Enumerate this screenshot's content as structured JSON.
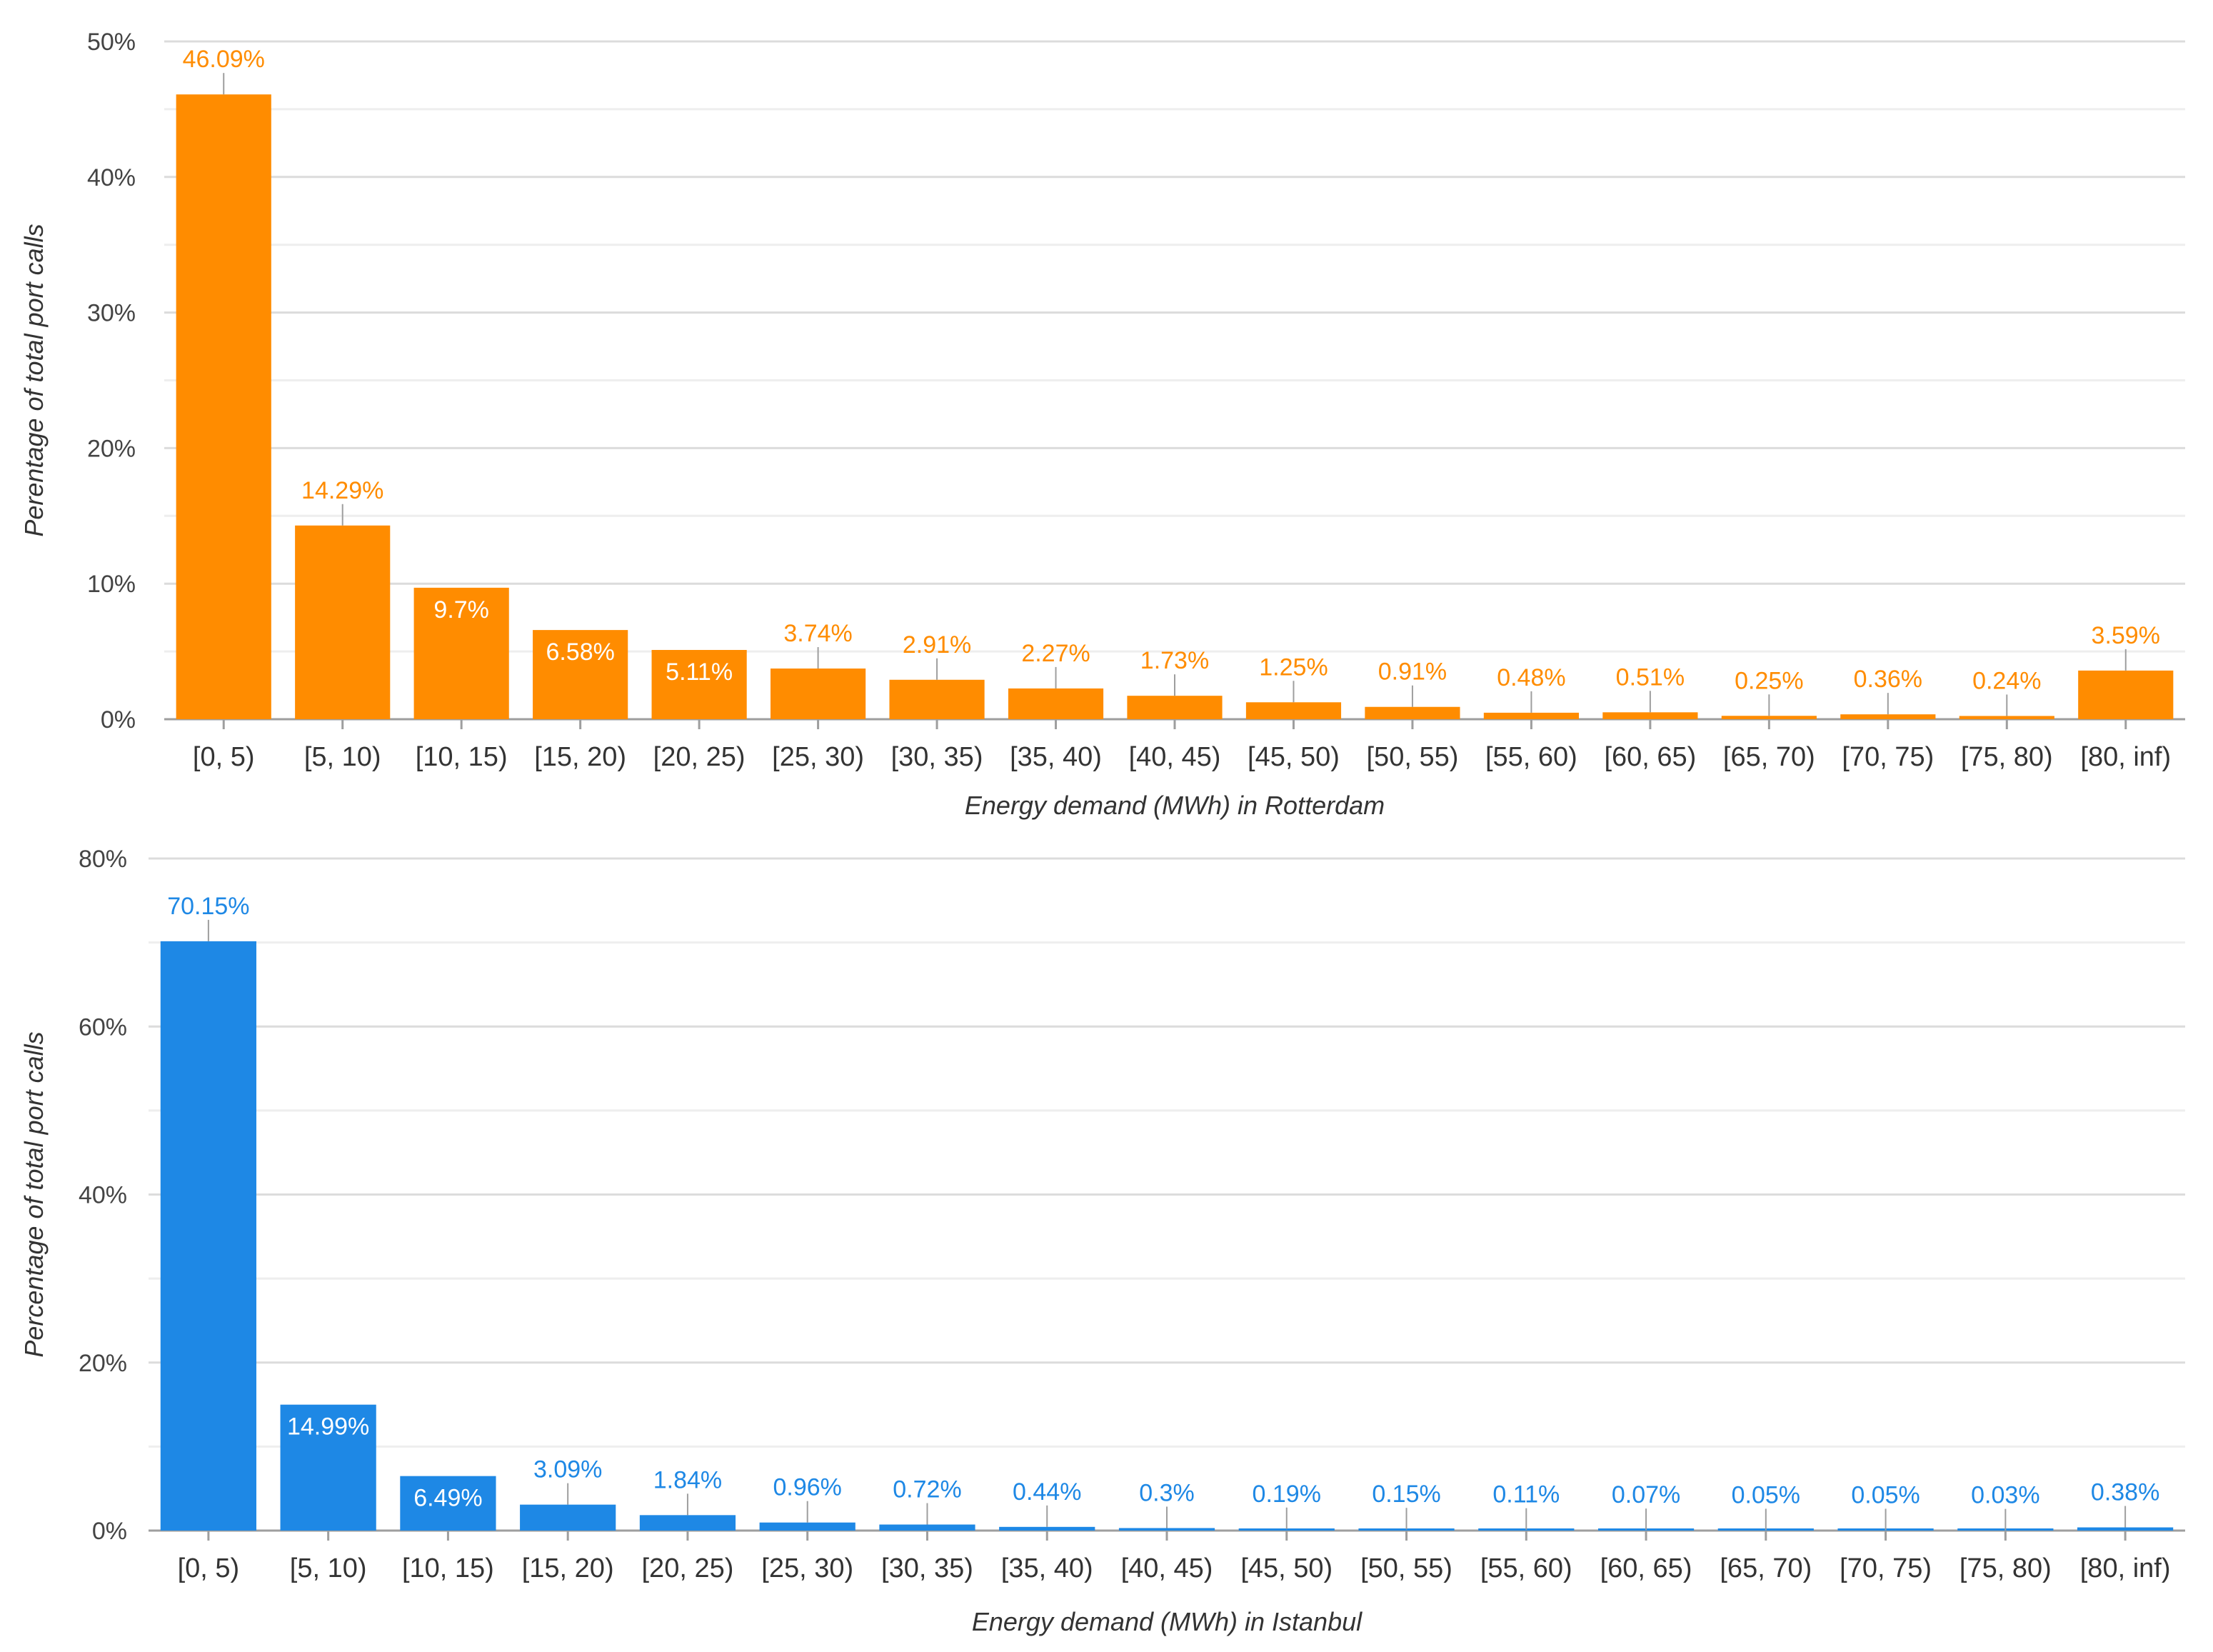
{
  "chart_data": [
    {
      "type": "bar",
      "categories": [
        "[0, 5)",
        "[5, 10)",
        "[10, 15)",
        "[15, 20)",
        "[20, 25)",
        "[25, 30)",
        "[30, 35)",
        "[35, 40)",
        "[40, 45)",
        "[45, 50)",
        "[50, 55)",
        "[55, 60)",
        "[60, 65)",
        "[65, 70)",
        "[70, 75)",
        "[75, 80)",
        "[80, inf)"
      ],
      "values": [
        46.09,
        14.29,
        9.7,
        6.58,
        5.11,
        3.74,
        2.91,
        2.27,
        1.73,
        1.25,
        0.91,
        0.48,
        0.51,
        0.25,
        0.36,
        0.24,
        3.59
      ],
      "value_labels": [
        "46.09%",
        "14.29%",
        "9.7%",
        "6.58%",
        "5.11%",
        "3.74%",
        "2.91%",
        "2.27%",
        "1.73%",
        "1.25%",
        "0.91%",
        "0.48%",
        "0.51%",
        "0.25%",
        "0.36%",
        "0.24%",
        "3.59%"
      ],
      "xlabel": "Energy demand (MWh) in Rotterdam",
      "ylabel": "Perentage of total port calls",
      "ylim": [
        0,
        50
      ],
      "yticks": [
        0,
        10,
        20,
        30,
        40,
        50
      ],
      "ytick_labels": [
        "0%",
        "10%",
        "20%",
        "30%",
        "40%",
        "50%"
      ],
      "color": "#FF8C00",
      "grid": true
    },
    {
      "type": "bar",
      "categories": [
        "[0, 5)",
        "[5, 10)",
        "[10, 15)",
        "[15, 20)",
        "[20, 25)",
        "[25, 30)",
        "[30, 35)",
        "[35, 40)",
        "[40, 45)",
        "[45, 50)",
        "[50, 55)",
        "[55, 60)",
        "[60, 65)",
        "[65, 70)",
        "[70, 75)",
        "[75, 80)",
        "[80, inf)"
      ],
      "values": [
        70.15,
        14.99,
        6.49,
        3.09,
        1.84,
        0.96,
        0.72,
        0.44,
        0.3,
        0.19,
        0.15,
        0.11,
        0.07,
        0.05,
        0.05,
        0.03,
        0.38
      ],
      "value_labels": [
        "70.15%",
        "14.99%",
        "6.49%",
        "3.09%",
        "1.84%",
        "0.96%",
        "0.72%",
        "0.44%",
        "0.3%",
        "0.19%",
        "0.15%",
        "0.11%",
        "0.07%",
        "0.05%",
        "0.05%",
        "0.03%",
        "0.38%"
      ],
      "xlabel": "Energy demand (MWh) in Istanbul",
      "ylabel": "Percentage of total port calls",
      "ylim": [
        0,
        80
      ],
      "yticks": [
        0,
        20,
        40,
        60,
        80
      ],
      "ytick_labels": [
        "0%",
        "20%",
        "40%",
        "60%",
        "80%"
      ],
      "color": "#1E88E5",
      "grid": true
    }
  ]
}
